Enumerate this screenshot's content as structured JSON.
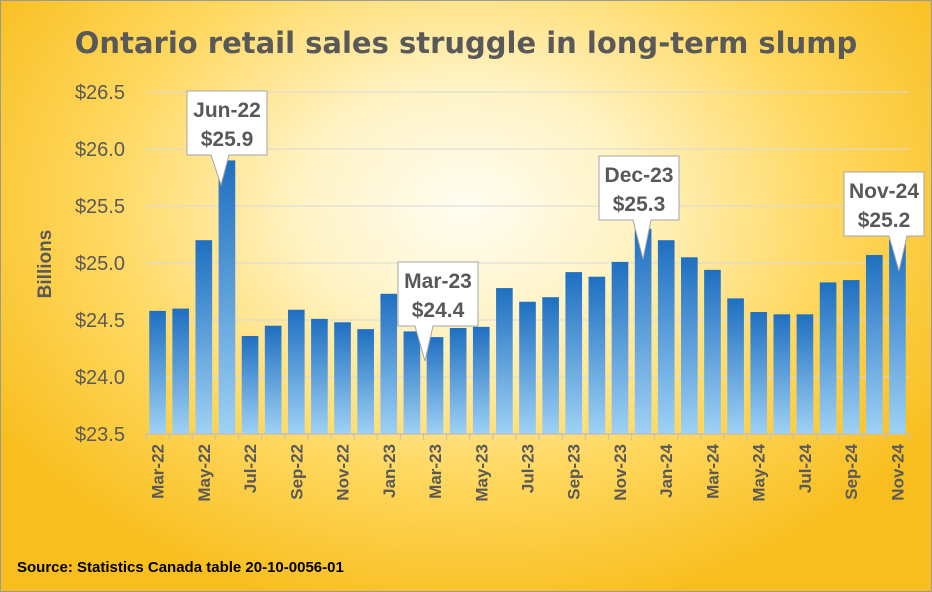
{
  "chart_data": {
    "type": "bar",
    "title": "Ontario retail sales struggle in long-term slump",
    "ylabel": "Billions",
    "xlabel": "",
    "ylim": [
      23.5,
      26.5
    ],
    "yticks": [
      23.5,
      24.0,
      24.5,
      25.0,
      25.5,
      26.0,
      26.5
    ],
    "ytick_labels": [
      "$23.5",
      "$24.0",
      "$24.5",
      "$25.0",
      "$25.5",
      "$26.0",
      "$26.5"
    ],
    "categories": [
      "Mar-22",
      "Apr-22",
      "May-22",
      "Jun-22",
      "Jul-22",
      "Aug-22",
      "Sep-22",
      "Oct-22",
      "Nov-22",
      "Dec-22",
      "Jan-23",
      "Feb-23",
      "Mar-23",
      "Apr-23",
      "May-23",
      "Jun-23",
      "Jul-23",
      "Aug-23",
      "Sep-23",
      "Oct-23",
      "Nov-23",
      "Dec-23",
      "Jan-24",
      "Feb-24",
      "Mar-24",
      "Apr-24",
      "May-24",
      "Jun-24",
      "Jul-24",
      "Aug-24",
      "Sep-24",
      "Oct-24",
      "Nov-24"
    ],
    "values": [
      24.58,
      24.6,
      25.2,
      25.9,
      24.36,
      24.45,
      24.59,
      24.51,
      24.48,
      24.42,
      24.73,
      24.4,
      24.35,
      24.43,
      24.44,
      24.78,
      24.66,
      24.7,
      24.92,
      24.88,
      25.01,
      25.3,
      25.2,
      25.05,
      24.94,
      24.69,
      24.57,
      24.55,
      24.55,
      24.83,
      24.85,
      25.07,
      25.2
    ],
    "xtick_labels": [
      "Mar-22",
      "May-22",
      "Jul-22",
      "Sep-22",
      "Nov-22",
      "Jan-23",
      "Mar-23",
      "May-23",
      "Jul-23",
      "Sep-23",
      "Nov-23",
      "Jan-24",
      "Mar-24",
      "May-24",
      "Jul-24",
      "Sep-24",
      "Nov-24"
    ],
    "bar_color_top": "#1f6fc1",
    "bar_color_bottom": "#9ed1f5",
    "grid": true,
    "legend": "none",
    "annotations": [
      {
        "category": "Jun-22",
        "line1": "Jun-22",
        "line2": "$25.9"
      },
      {
        "category": "Mar-23",
        "line1": "Mar-23",
        "line2": "$24.4"
      },
      {
        "category": "Dec-23",
        "line1": "Dec-23",
        "line2": "$25.3"
      },
      {
        "category": "Nov-24",
        "line1": "Nov-24",
        "line2": "$25.2"
      }
    ]
  },
  "source": "Source: Statistics Canada table 20-10-0056-01"
}
